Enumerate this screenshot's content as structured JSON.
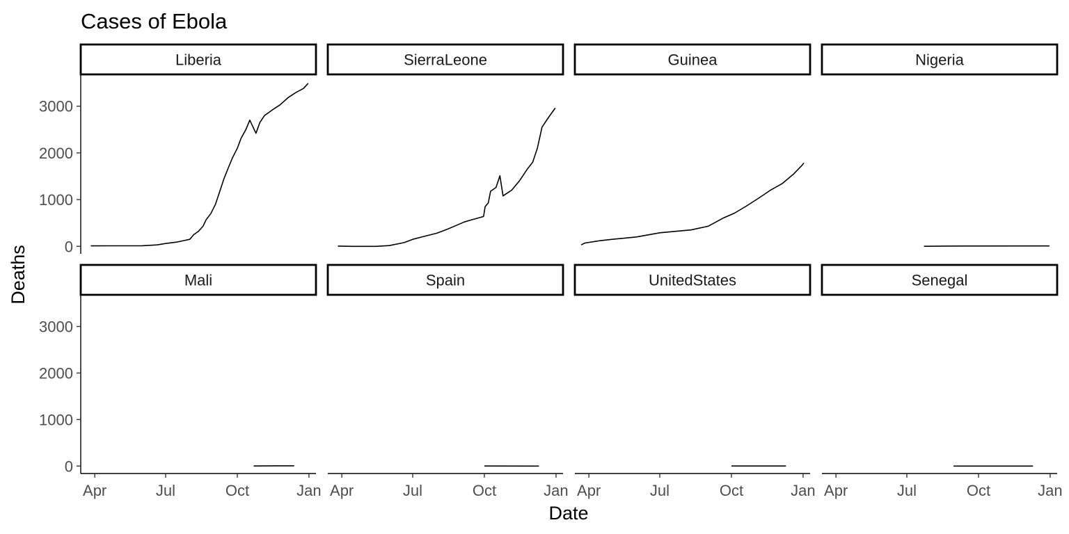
{
  "chart_data": {
    "type": "line",
    "title": "Cases of Ebola",
    "xlabel": "Date",
    "ylabel": "Deaths",
    "facet_layout": "4 columns x 2 rows, shared axes",
    "grid": false,
    "x_axis_type": "date",
    "xlim": [
      "2014-03-14",
      "2015-01-10"
    ],
    "ylim": [
      -160,
      3680
    ],
    "x_ticks": [
      {
        "date": "2014-04-01",
        "label": "Apr"
      },
      {
        "date": "2014-07-01",
        "label": "Jul"
      },
      {
        "date": "2014-10-01",
        "label": "Oct"
      },
      {
        "date": "2015-01-01",
        "label": "Jan"
      }
    ],
    "y_ticks": [
      {
        "value": 0,
        "label": "0"
      },
      {
        "value": 1000,
        "label": "1000"
      },
      {
        "value": 2000,
        "label": "2000"
      },
      {
        "value": 3000,
        "label": "3000"
      }
    ],
    "line_color": "#000000",
    "facets": [
      {
        "name": "Liberia",
        "series": [
          [
            "2014-03-27",
            10
          ],
          [
            "2014-05-01",
            11
          ],
          [
            "2014-06-01",
            13
          ],
          [
            "2014-06-20",
            30
          ],
          [
            "2014-07-01",
            60
          ],
          [
            "2014-07-15",
            90
          ],
          [
            "2014-07-25",
            125
          ],
          [
            "2014-08-01",
            150
          ],
          [
            "2014-08-06",
            250
          ],
          [
            "2014-08-12",
            320
          ],
          [
            "2014-08-18",
            430
          ],
          [
            "2014-08-22",
            570
          ],
          [
            "2014-08-28",
            700
          ],
          [
            "2014-09-03",
            900
          ],
          [
            "2014-09-08",
            1150
          ],
          [
            "2014-09-14",
            1450
          ],
          [
            "2014-09-20",
            1700
          ],
          [
            "2014-09-25",
            1900
          ],
          [
            "2014-10-01",
            2100
          ],
          [
            "2014-10-06",
            2320
          ],
          [
            "2014-10-12",
            2500
          ],
          [
            "2014-10-17",
            2700
          ],
          [
            "2014-10-25",
            2420
          ],
          [
            "2014-10-30",
            2650
          ],
          [
            "2014-11-05",
            2800
          ],
          [
            "2014-11-15",
            2920
          ],
          [
            "2014-11-25",
            3030
          ],
          [
            "2014-12-05",
            3180
          ],
          [
            "2014-12-15",
            3290
          ],
          [
            "2014-12-25",
            3380
          ],
          [
            "2014-12-31",
            3490
          ]
        ]
      },
      {
        "name": "SierraLeone",
        "series": [
          [
            "2014-03-27",
            5
          ],
          [
            "2014-04-15",
            0
          ],
          [
            "2014-05-15",
            0
          ],
          [
            "2014-06-01",
            15
          ],
          [
            "2014-06-20",
            80
          ],
          [
            "2014-07-01",
            150
          ],
          [
            "2014-07-15",
            210
          ],
          [
            "2014-08-01",
            280
          ],
          [
            "2014-08-15",
            370
          ],
          [
            "2014-08-25",
            440
          ],
          [
            "2014-09-05",
            520
          ],
          [
            "2014-09-15",
            570
          ],
          [
            "2014-09-26",
            620
          ],
          [
            "2014-09-30",
            640
          ],
          [
            "2014-10-02",
            850
          ],
          [
            "2014-10-06",
            930
          ],
          [
            "2014-10-09",
            1180
          ],
          [
            "2014-10-16",
            1260
          ],
          [
            "2014-10-21",
            1510
          ],
          [
            "2014-10-25",
            1080
          ],
          [
            "2014-11-05",
            1200
          ],
          [
            "2014-11-15",
            1400
          ],
          [
            "2014-11-25",
            1650
          ],
          [
            "2014-12-02",
            1800
          ],
          [
            "2014-12-08",
            2100
          ],
          [
            "2014-12-14",
            2550
          ],
          [
            "2014-12-22",
            2750
          ],
          [
            "2014-12-31",
            2960
          ]
        ]
      },
      {
        "name": "Guinea",
        "series": [
          [
            "2014-03-22",
            30
          ],
          [
            "2014-03-27",
            70
          ],
          [
            "2014-04-15",
            120
          ],
          [
            "2014-05-01",
            150
          ],
          [
            "2014-06-01",
            200
          ],
          [
            "2014-07-01",
            290
          ],
          [
            "2014-07-20",
            320
          ],
          [
            "2014-08-10",
            350
          ],
          [
            "2014-09-01",
            430
          ],
          [
            "2014-09-20",
            600
          ],
          [
            "2014-10-05",
            710
          ],
          [
            "2014-10-20",
            860
          ],
          [
            "2014-11-05",
            1030
          ],
          [
            "2014-11-20",
            1200
          ],
          [
            "2014-12-05",
            1340
          ],
          [
            "2014-12-20",
            1550
          ],
          [
            "2014-12-31",
            1740
          ],
          [
            "2015-01-02",
            1785
          ]
        ]
      },
      {
        "name": "Nigeria",
        "series": [
          [
            "2014-07-23",
            1
          ],
          [
            "2014-07-29",
            1
          ],
          [
            "2014-08-06",
            2
          ],
          [
            "2014-08-20",
            5
          ],
          [
            "2014-09-10",
            7
          ],
          [
            "2014-12-31",
            8
          ]
        ]
      },
      {
        "name": "Mali",
        "series": [
          [
            "2014-10-22",
            1
          ],
          [
            "2014-11-05",
            3
          ],
          [
            "2014-11-20",
            6
          ],
          [
            "2014-12-13",
            6
          ]
        ]
      },
      {
        "name": "Spain",
        "series": [
          [
            "2014-10-01",
            1
          ],
          [
            "2014-12-10",
            0
          ]
        ]
      },
      {
        "name": "UnitedStates",
        "series": [
          [
            "2014-10-01",
            1
          ],
          [
            "2014-12-10",
            1
          ]
        ]
      },
      {
        "name": "Senegal",
        "series": [
          [
            "2014-08-30",
            0
          ],
          [
            "2014-12-10",
            0
          ]
        ]
      }
    ]
  }
}
